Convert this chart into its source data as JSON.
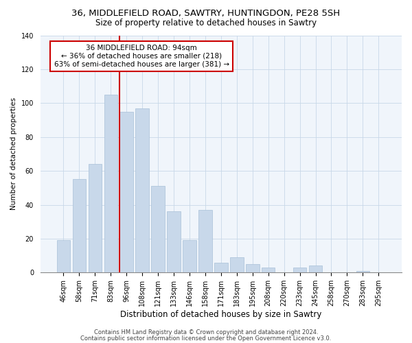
{
  "title": "36, MIDDLEFIELD ROAD, SAWTRY, HUNTINGDON, PE28 5SH",
  "subtitle": "Size of property relative to detached houses in Sawtry",
  "xlabel": "Distribution of detached houses by size in Sawtry",
  "ylabel": "Number of detached properties",
  "bar_labels": [
    "46sqm",
    "58sqm",
    "71sqm",
    "83sqm",
    "96sqm",
    "108sqm",
    "121sqm",
    "133sqm",
    "146sqm",
    "158sqm",
    "171sqm",
    "183sqm",
    "195sqm",
    "208sqm",
    "220sqm",
    "233sqm",
    "245sqm",
    "258sqm",
    "270sqm",
    "283sqm",
    "295sqm"
  ],
  "bar_values": [
    19,
    55,
    64,
    105,
    95,
    97,
    51,
    36,
    19,
    37,
    6,
    9,
    5,
    3,
    0,
    3,
    4,
    0,
    0,
    1,
    0
  ],
  "bar_color": "#c8d8ea",
  "bar_edge_color": "#a8c0d8",
  "highlight_index": 4,
  "highlight_line_color": "#cc0000",
  "ylim": [
    0,
    140
  ],
  "yticks": [
    0,
    20,
    40,
    60,
    80,
    100,
    120,
    140
  ],
  "annotation_line1": "36 MIDDLEFIELD ROAD: 94sqm",
  "annotation_line2": "← 36% of detached houses are smaller (218)",
  "annotation_line3": "63% of semi-detached houses are larger (381) →",
  "annotation_box_edgecolor": "#cc0000",
  "annotation_box_facecolor": "#ffffff",
  "footer_line1": "Contains HM Land Registry data © Crown copyright and database right 2024.",
  "footer_line2": "Contains public sector information licensed under the Open Government Licence v3.0.",
  "title_fontsize": 9.5,
  "subtitle_fontsize": 8.5,
  "ylabel_fontsize": 7.5,
  "xlabel_fontsize": 8.5,
  "tick_fontsize": 7,
  "annotation_fontsize": 7.5,
  "footer_fontsize": 6
}
